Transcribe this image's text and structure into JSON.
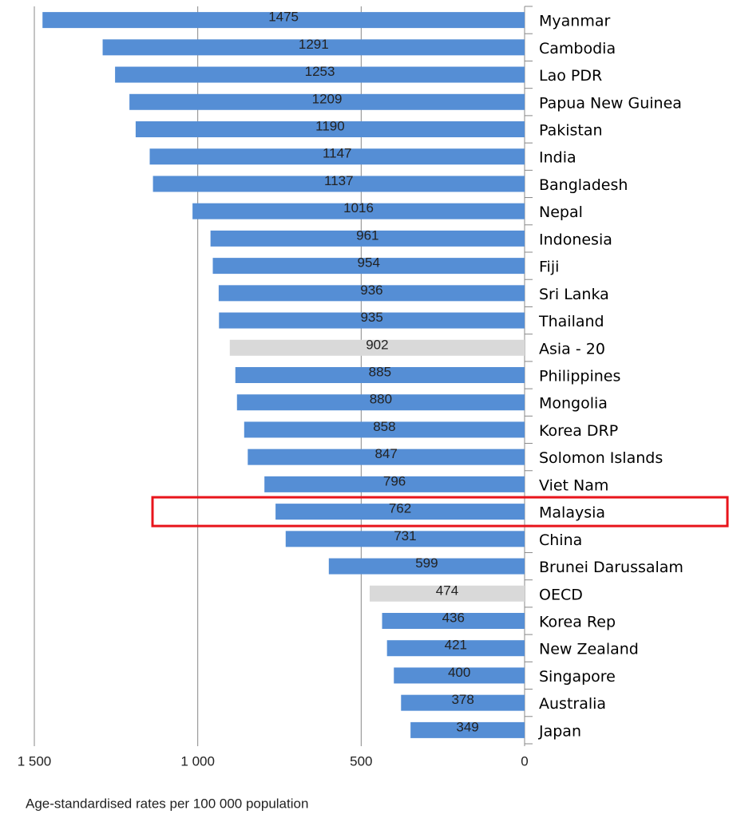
{
  "chart_data": {
    "type": "barh",
    "x_label": "Age-standardised rates per 100 000 population",
    "categories": [
      "Myanmar",
      "Cambodia",
      "Lao PDR",
      "Papua New Guinea",
      "Pakistan",
      "India",
      "Bangladesh",
      "Nepal",
      "Indonesia",
      "Fiji",
      "Sri Lanka",
      "Thailand",
      "Asia - 20",
      "Philippines",
      "Mongolia",
      "Korea DRP",
      "Solomon Islands",
      "Viet Nam",
      "Malaysia",
      "China",
      "Brunei Darussalam",
      "OECD",
      "Korea Rep",
      "New Zealand",
      "Singapore",
      "Australia",
      "Japan"
    ],
    "values": [
      1475,
      1291,
      1253,
      1209,
      1190,
      1147,
      1137,
      1016,
      961,
      954,
      936,
      935,
      902,
      885,
      880,
      858,
      847,
      796,
      762,
      731,
      599,
      474,
      436,
      421,
      400,
      378,
      349
    ],
    "colors": [
      "#558ed5",
      "#558ed5",
      "#558ed5",
      "#558ed5",
      "#558ed5",
      "#558ed5",
      "#558ed5",
      "#558ed5",
      "#558ed5",
      "#558ed5",
      "#558ed5",
      "#558ed5",
      "#d9d9d9",
      "#558ed5",
      "#558ed5",
      "#558ed5",
      "#558ed5",
      "#558ed5",
      "#558ed5",
      "#558ed5",
      "#558ed5",
      "#d9d9d9",
      "#558ed5",
      "#558ed5",
      "#558ed5",
      "#558ed5",
      "#558ed5"
    ],
    "xlim": [
      0,
      1500
    ],
    "x_reversed": true,
    "xticks": [
      {
        "value": 1500,
        "label": "1 500"
      },
      {
        "value": 1000,
        "label": "1 000"
      },
      500,
      0
    ],
    "grid": true,
    "highlight": "Malaysia",
    "highlight_color": "#e8141b"
  }
}
